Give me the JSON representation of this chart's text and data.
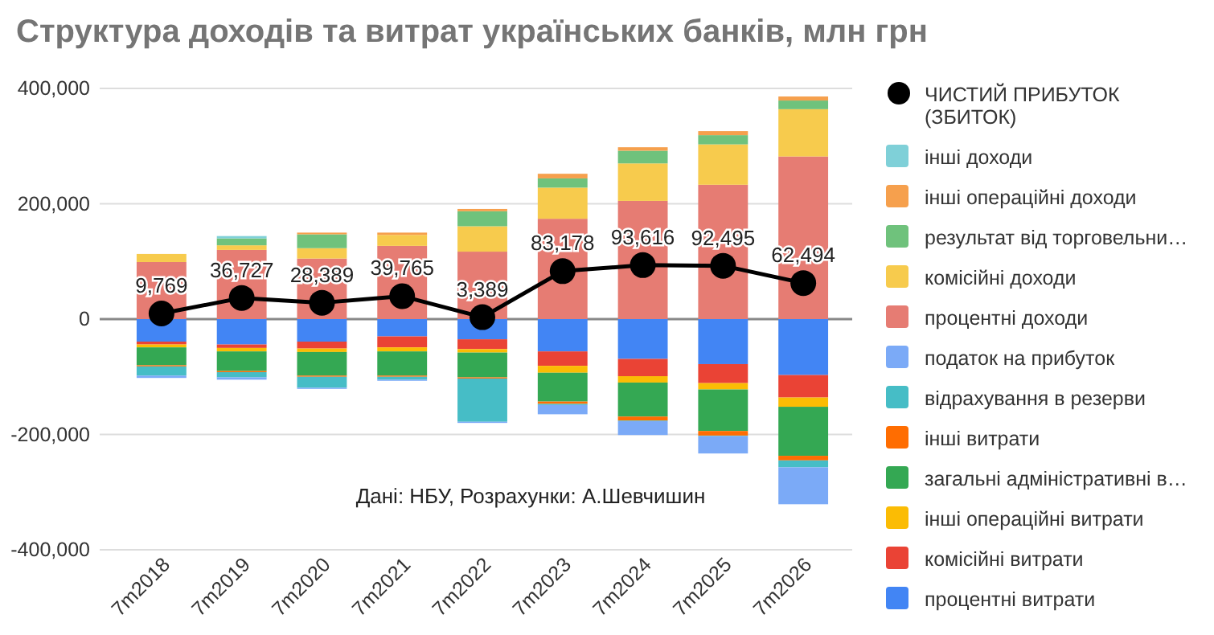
{
  "chart_data": {
    "type": "bar",
    "stacked": true,
    "title": "Структура доходів та витрат українських банків, млн грн",
    "categories": [
      "7m2018",
      "7m2019",
      "7m2020",
      "7m2021",
      "7m2022",
      "7m2023",
      "7m2024",
      "7m2025",
      "7m2026"
    ],
    "ylim": [
      -400000,
      400000
    ],
    "yticks": [
      {
        "value": -400000,
        "label": "-400,000"
      },
      {
        "value": -200000,
        "label": "-200,000"
      },
      {
        "value": 0,
        "label": "0"
      },
      {
        "value": 200000,
        "label": "200,000"
      },
      {
        "value": 400000,
        "label": "400,000"
      }
    ],
    "grid": "y",
    "legend": "right",
    "annotations": [
      "Дані: НБУ, Розрахунки: А.Шевчишин"
    ],
    "series": [
      {
        "name": "процентні витрати",
        "color": "#4285f4",
        "values": [
          -39000,
          -44000,
          -39000,
          -30000,
          -35000,
          -56000,
          -69000,
          -78000,
          -97000
        ]
      },
      {
        "name": "комісійні витрати",
        "color": "#ea4335",
        "values": [
          -5000,
          -6000,
          -12000,
          -19000,
          -17000,
          -25000,
          -30000,
          -33000,
          -39000
        ]
      },
      {
        "name": "інші операційні витрати",
        "color": "#fbbc04",
        "values": [
          -5000,
          -6000,
          -6000,
          -7000,
          -6000,
          -12000,
          -11000,
          -11000,
          -16000
        ]
      },
      {
        "name": "загальні адміністративні в…",
        "color": "#34a853",
        "values": [
          -31000,
          -34000,
          -41000,
          -42000,
          -43000,
          -50000,
          -59000,
          -72000,
          -85000
        ]
      },
      {
        "name": "інші витрати",
        "color": "#ff6d01",
        "values": [
          -2000,
          -2000,
          -2000,
          -2000,
          -2000,
          -4000,
          -7000,
          -8000,
          -8000
        ]
      },
      {
        "name": "відрахування в резерви",
        "color": "#46bdc6",
        "values": [
          -16000,
          -9000,
          -19000,
          -5000,
          -75000,
          -2000,
          -1000,
          -1000,
          -12000
        ]
      },
      {
        "name": "податок на прибуток",
        "color": "#7baaf7",
        "values": [
          -4000,
          -4000,
          -2000,
          -2000,
          -2000,
          -16000,
          -24000,
          -30000,
          -64000
        ]
      },
      {
        "name": "процентні доходи",
        "color": "#e67c73",
        "values": [
          99000,
          120000,
          105000,
          127000,
          117000,
          174000,
          205000,
          233000,
          282000
        ]
      },
      {
        "name": "комісійні доходи",
        "color": "#f7cb4d",
        "values": [
          14000,
          8000,
          18000,
          19000,
          44000,
          54000,
          65000,
          70000,
          82000
        ]
      },
      {
        "name": "результат від торговельни…",
        "color": "#6fc27c",
        "values": [
          null,
          12000,
          24000,
          null,
          26000,
          16000,
          22000,
          16000,
          15000
        ]
      },
      {
        "name": "інші операційні доходи",
        "color": "#f6a04d",
        "values": [
          null,
          null,
          3000,
          4000,
          4000,
          8000,
          6000,
          7000,
          7000
        ]
      },
      {
        "name": "інші доходи",
        "color": "#7fd0d8",
        "values": [
          null,
          4000,
          null,
          null,
          null,
          null,
          null,
          null,
          null
        ]
      },
      {
        "name": "ЧИСТИЙ ПРИБУТОК (ЗБИТОК)",
        "type": "line",
        "color": "#000000",
        "marker": "circle",
        "values": [
          9769,
          36727,
          28389,
          39765,
          3389,
          83178,
          93616,
          92495,
          62494
        ],
        "value_labels": [
          "9,769",
          "36,727",
          "28,389",
          "39,765",
          "3,389",
          "83,178",
          "93,616",
          "92,495",
          "62,494"
        ]
      }
    ]
  }
}
